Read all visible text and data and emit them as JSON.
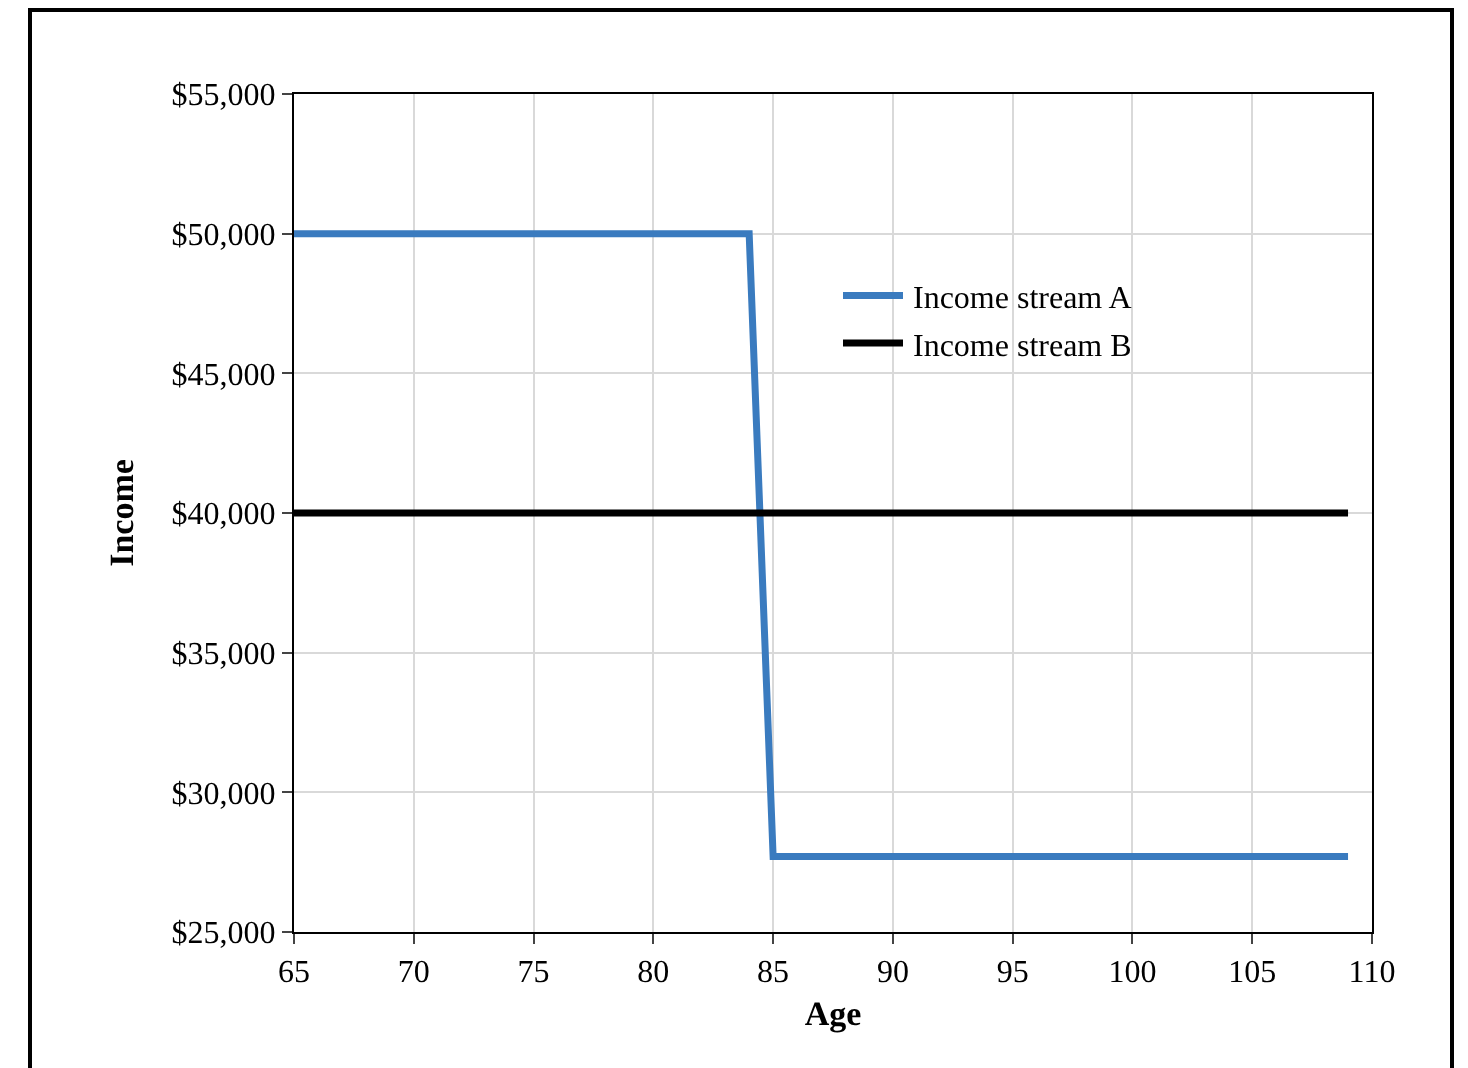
{
  "chart_data": {
    "type": "line",
    "xlabel": "Age",
    "ylabel": "Income",
    "series": [
      {
        "name": "Income stream A",
        "color": "#3a7bbf",
        "x": [
          65,
          84,
          85,
          109
        ],
        "values": [
          50000,
          50000,
          27700,
          27700
        ]
      },
      {
        "name": "Income stream B",
        "color": "#000000",
        "x": [
          65,
          109
        ],
        "values": [
          40000,
          40000
        ]
      }
    ],
    "xlim": [
      65,
      110
    ],
    "xticks": [
      65,
      70,
      75,
      80,
      85,
      90,
      95,
      100,
      105,
      110
    ],
    "ylim": [
      25000,
      55000
    ],
    "yticks": [
      {
        "value": 25000,
        "label": "$25,000"
      },
      {
        "value": 30000,
        "label": "$30,000"
      },
      {
        "value": 35000,
        "label": "$35,000"
      },
      {
        "value": 40000,
        "label": "$40,000"
      },
      {
        "value": 45000,
        "label": "$45,000"
      },
      {
        "value": 50000,
        "label": "$50,000"
      },
      {
        "value": 55000,
        "label": "$55,000"
      }
    ],
    "grid": true,
    "legend": "top right",
    "marker": "none",
    "line_style": "solid"
  }
}
